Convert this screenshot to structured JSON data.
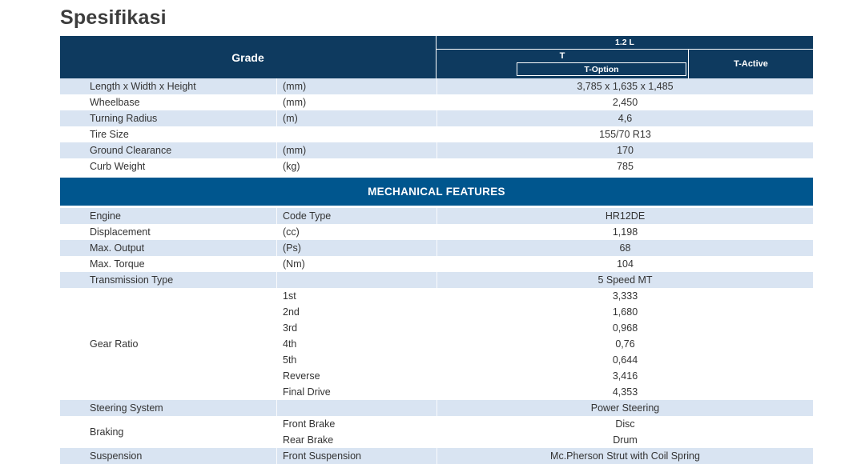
{
  "page_title": "Spesifikasi",
  "header": {
    "grade": "Grade",
    "engine": "1.2 L",
    "trim_t": "T",
    "trim_t_option": "T-Option",
    "trim_t_active": "T-Active"
  },
  "section_mechanical": "MECHANICAL FEATURES",
  "rows_top": [
    {
      "label": "Length x Width x Height",
      "unit": "(mm)",
      "value": "3,785 x 1,635 x 1,485"
    },
    {
      "label": "Wheelbase",
      "unit": "(mm)",
      "value": "2,450"
    },
    {
      "label": "Turning Radius",
      "unit": "(m)",
      "value": "4,6"
    },
    {
      "label": "Tire Size",
      "unit": "",
      "value": "155/70 R13"
    },
    {
      "label": "Ground Clearance",
      "unit": "(mm)",
      "value": "170"
    },
    {
      "label": "Curb Weight",
      "unit": "(kg)",
      "value": "785"
    }
  ],
  "rows_mechanical": [
    {
      "label": "Engine",
      "unit": "Code Type",
      "value": "HR12DE"
    },
    {
      "label": "Displacement",
      "unit": "(cc)",
      "value": "1,198"
    },
    {
      "label": "Max. Output",
      "unit": "(Ps)",
      "value": "68"
    },
    {
      "label": "Max. Torque",
      "unit": "(Nm)",
      "value": "104"
    },
    {
      "label": "Transmission Type",
      "unit": "",
      "value": "5 Speed MT"
    },
    {
      "label": "Gear Ratio",
      "lines": [
        {
          "unit": "1st",
          "value": "3,333"
        },
        {
          "unit": "2nd",
          "value": "1,680"
        },
        {
          "unit": "3rd",
          "value": "0,968"
        },
        {
          "unit": "4th",
          "value": "0,76"
        },
        {
          "unit": "5th",
          "value": "0,644"
        },
        {
          "unit": "Reverse",
          "value": "3,416"
        },
        {
          "unit": "Final Drive",
          "value": "4,353"
        }
      ]
    },
    {
      "label": "Steering System",
      "unit": "",
      "value": "Power Steering"
    },
    {
      "label": "Braking",
      "lines": [
        {
          "unit": "Front Brake",
          "value": "Disc"
        },
        {
          "unit": "Rear Brake",
          "value": "Drum"
        }
      ]
    },
    {
      "label": "Suspension",
      "lines": [
        {
          "unit": "Front Suspension",
          "value": "Mc.Pherson Strut with Coil Spring"
        }
      ]
    }
  ],
  "colors": {
    "header_navy": "#0e3a5f",
    "section_blue": "#00568e",
    "row_shade": "#d9e4f2"
  }
}
